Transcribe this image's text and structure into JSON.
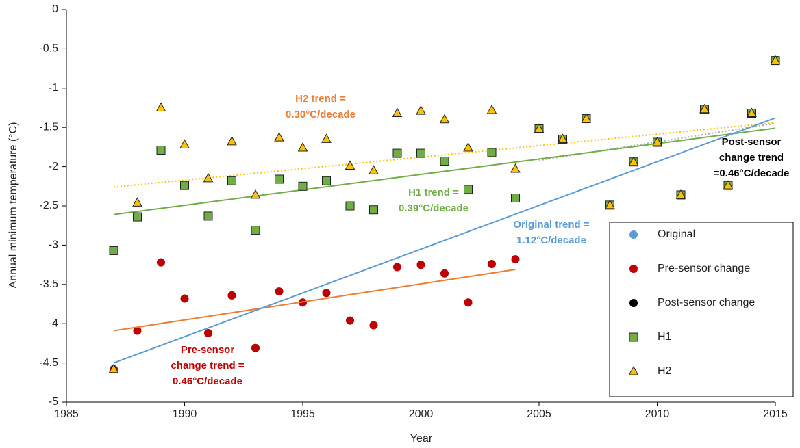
{
  "chart_data": {
    "type": "scatter",
    "x_label": "Year",
    "y_label": "Annual minimum temperature (°C)",
    "xlim": [
      1985,
      2015
    ],
    "xticks": [
      1985,
      1990,
      1995,
      2000,
      2005,
      2010,
      2015
    ],
    "ylim": [
      -5,
      0
    ],
    "yticks": [
      0,
      -0.5,
      -1,
      -1.5,
      -2,
      -2.5,
      -3,
      -3.5,
      -4,
      -4.5,
      -5
    ],
    "series": [
      {
        "name": "Original",
        "color": "#5b9bd5",
        "marker": "circle",
        "x": [
          1987,
          1988,
          1989,
          1990,
          1991,
          1992,
          1993,
          1994,
          1995,
          1996,
          1997,
          1998,
          1999,
          2000,
          2001,
          2002,
          2003,
          2004,
          2005,
          2006,
          2007,
          2008,
          2009,
          2010,
          2011,
          2012,
          2013,
          2014,
          2015
        ],
        "values": [
          -4.58,
          -4.09,
          -3.22,
          -3.68,
          -4.12,
          -3.64,
          -4.31,
          -3.59,
          -3.73,
          -3.61,
          -3.96,
          -4.02,
          -3.28,
          -3.25,
          -3.36,
          -3.73,
          -3.24,
          -3.18,
          -1.52,
          -1.65,
          -1.39,
          -2.49,
          -1.94,
          -1.69,
          -2.36,
          -1.27,
          -2.24,
          -1.32,
          -0.65
        ]
      },
      {
        "name": "Pre-sensor change",
        "color": "#c00000",
        "marker": "circle",
        "x": [
          1987,
          1988,
          1989,
          1990,
          1991,
          1992,
          1993,
          1994,
          1995,
          1996,
          1997,
          1998,
          1999,
          2000,
          2001,
          2002,
          2003,
          2004
        ],
        "values": [
          -4.58,
          -4.09,
          -3.22,
          -3.68,
          -4.12,
          -3.64,
          -4.31,
          -3.59,
          -3.73,
          -3.61,
          -3.96,
          -4.02,
          -3.28,
          -3.25,
          -3.36,
          -3.73,
          -3.24,
          -3.18
        ]
      },
      {
        "name": "Post-sensor change",
        "color": "#000000",
        "marker": "circle",
        "x": [
          2005,
          2006,
          2007,
          2008,
          2009,
          2010,
          2011,
          2012,
          2013,
          2014,
          2015
        ],
        "values": [
          -1.52,
          -1.65,
          -1.39,
          -2.49,
          -1.94,
          -1.69,
          -2.36,
          -1.27,
          -2.24,
          -1.32,
          -0.65
        ]
      },
      {
        "name": "H1",
        "color": "#70ad47",
        "marker": "square",
        "x": [
          1987,
          1988,
          1989,
          1990,
          1991,
          1992,
          1993,
          1994,
          1995,
          1996,
          1997,
          1998,
          1999,
          2000,
          2001,
          2002,
          2003,
          2004,
          2005,
          2006,
          2007,
          2008,
          2009,
          2010,
          2011,
          2012,
          2013,
          2014,
          2015
        ],
        "values": [
          -3.07,
          -2.64,
          -1.79,
          -2.24,
          -2.63,
          -2.18,
          -2.81,
          -2.16,
          -2.25,
          -2.18,
          -2.5,
          -2.55,
          -1.83,
          -1.83,
          -1.93,
          -2.29,
          -1.82,
          -2.4,
          -1.52,
          -1.65,
          -1.39,
          -2.49,
          -1.94,
          -1.69,
          -2.36,
          -1.27,
          -2.24,
          -1.32,
          -0.65
        ]
      },
      {
        "name": "H2",
        "color": "#ffc000",
        "marker": "triangle",
        "x": [
          1987,
          1988,
          1989,
          1990,
          1991,
          1992,
          1993,
          1994,
          1995,
          1996,
          1997,
          1998,
          1999,
          2000,
          2001,
          2002,
          2003,
          2004,
          2005,
          2006,
          2007,
          2008,
          2009,
          2010,
          2011,
          2012,
          2013,
          2014,
          2015
        ],
        "values": [
          -4.58,
          -2.46,
          -1.25,
          -1.72,
          -2.15,
          -1.68,
          -2.36,
          -1.63,
          -1.76,
          -1.65,
          -1.99,
          -2.05,
          -1.32,
          -1.29,
          -1.4,
          -1.76,
          -1.28,
          -2.03,
          -1.52,
          -1.65,
          -1.39,
          -2.49,
          -1.94,
          -1.69,
          -2.36,
          -1.27,
          -2.24,
          -1.32,
          -0.65
        ]
      }
    ],
    "trends": [
      {
        "x": [
          1987,
          2004
        ],
        "values": [
          -4.09,
          -3.31
        ],
        "color": "#ed7d31",
        "dotted": false
      },
      {
        "x": [
          1987,
          2015
        ],
        "values": [
          -2.26,
          -1.44
        ],
        "color": "#ffc000",
        "dotted": true
      },
      {
        "x": [
          2005,
          2015
        ],
        "values": [
          -1.92,
          -1.45
        ],
        "color": "#a5a5a5",
        "dotted": true
      },
      {
        "x": [
          1987,
          2015
        ],
        "values": [
          -2.61,
          -1.51
        ],
        "color": "#70ad47",
        "dotted": false
      },
      {
        "x": [
          1987,
          2015
        ],
        "values": [
          -4.5,
          -1.38
        ],
        "color": "#5b9bd5",
        "dotted": false
      }
    ],
    "annotations": [
      {
        "lines": [
          "H2 trend =",
          "0.30°C/decade"
        ],
        "color": "#ed7d31"
      },
      {
        "lines": [
          "H1 trend =",
          "0.39°C/decade"
        ],
        "color": "#70ad47"
      },
      {
        "lines": [
          "Original trend =",
          "1.12°C/decade"
        ],
        "color": "#5b9bd5"
      },
      {
        "lines": [
          "Pre-sensor",
          "change trend =",
          "0.46°C/decade"
        ],
        "color": "#c00000"
      },
      {
        "lines": [
          "Post-sensor",
          "change trend",
          "=0.46°C/decade"
        ],
        "color": "#000000"
      }
    ],
    "legend": "lower right"
  }
}
